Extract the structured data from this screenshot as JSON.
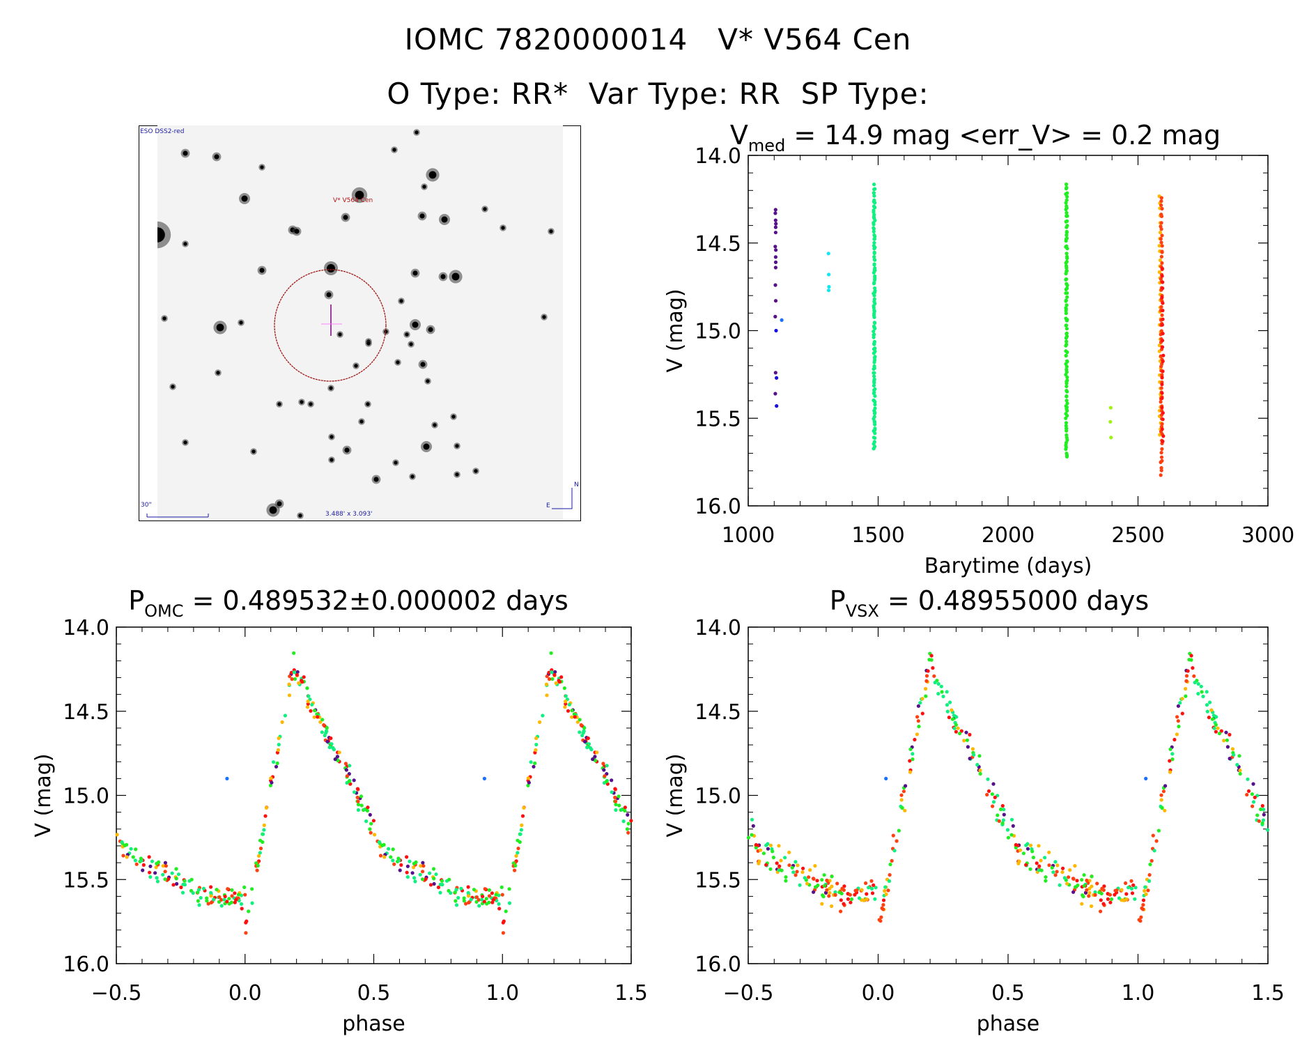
{
  "header": {
    "title_line1": "IOMC 7820000014   V* V564 Cen",
    "title_line2": "O Type: RR*  Var Type: RR  SP Type:"
  },
  "finder_image": {
    "survey_label": "ESO DSS2-red",
    "target_label": "V* V564 Cen",
    "scale_label": "30\"",
    "fov_label": "3.488' x 3.093'",
    "north_label": "N",
    "east_label": "E"
  },
  "chart_data": [
    {
      "id": "light_curve",
      "type": "scatter",
      "title_main": "V",
      "title_sub": "med",
      "title_rest": " = 14.9 mag <err_V> = 0.2 mag",
      "xlabel": "Barytime (days)",
      "ylabel": "V (mag)",
      "xlim": [
        1000,
        3000
      ],
      "ylim": [
        16.0,
        14.0
      ],
      "y_inverted": true,
      "xticks": [
        1000,
        1500,
        2000,
        2500,
        3000
      ],
      "yticks": [
        "14.0",
        "14.5",
        "15.0",
        "15.5",
        "16.0"
      ],
      "grid": false,
      "groups": [
        {
          "x": 1105,
          "color": "#55108a",
          "y": [
            14.31,
            14.33,
            14.37,
            14.39,
            14.41,
            14.44,
            14.52,
            14.54,
            14.58,
            14.61,
            14.64,
            14.74,
            14.83,
            14.92,
            15.24,
            15.36
          ]
        },
        {
          "x": 1108,
          "color": "#1a10e0",
          "y": [
            15.0,
            15.27,
            15.43
          ]
        },
        {
          "x": 1128,
          "color": "#1a70ff",
          "y": [
            14.94
          ]
        },
        {
          "x": 1310,
          "color": "#10e8f0",
          "y": [
            14.56,
            14.68,
            14.75,
            14.77
          ]
        },
        {
          "x": 1485,
          "color": "#10f080",
          "y_range": [
            14.17,
            15.68
          ],
          "n": 120
        },
        {
          "x": 2225,
          "color": "#20ee20",
          "y_range": [
            14.17,
            15.72
          ],
          "n": 110
        },
        {
          "x": 2395,
          "color": "#a0f010",
          "y": [
            15.44,
            15.52,
            15.61
          ]
        },
        {
          "x": 2585,
          "color": "#ffb800",
          "y_range": [
            14.24,
            15.6
          ],
          "n": 40
        },
        {
          "x": 2590,
          "color": "#ff4010",
          "y_range": [
            14.24,
            15.83
          ],
          "n": 70
        },
        {
          "x": 2595,
          "color": "#ff1010",
          "y_range": [
            14.64,
            15.64
          ],
          "n": 25
        }
      ]
    },
    {
      "id": "phase_omc",
      "type": "scatter",
      "title_main": "P",
      "title_sub": "OMC",
      "title_rest": " = 0.489532±0.000002 days",
      "period_days": 0.489532,
      "period_err_days": 2e-06,
      "xlabel": "phase",
      "ylabel": "V (mag)",
      "xlim": [
        -0.5,
        1.5
      ],
      "ylim": [
        16.0,
        14.0
      ],
      "y_inverted": true,
      "xticks": [
        "-0.5",
        "0.0",
        "0.5",
        "1.0",
        "1.5"
      ],
      "yticks": [
        "14.0",
        "14.5",
        "15.0",
        "15.5",
        "16.0"
      ],
      "grid": false,
      "curve": {
        "min_phase": 0.0,
        "max_phase": 0.19,
        "max_mag": 14.2,
        "min_mag": 15.8,
        "scatter": 0.09
      },
      "outliers": [
        {
          "phase": -0.07,
          "v": 14.9,
          "color": "#1a70ff"
        },
        {
          "phase": 0.93,
          "v": 14.9,
          "color": "#1a70ff"
        }
      ]
    },
    {
      "id": "phase_vsx",
      "type": "scatter",
      "title_main": "P",
      "title_sub": "VSX",
      "title_rest": " = 0.48955000 days",
      "period_days": 0.48955,
      "xlabel": "phase",
      "ylabel": "V (mag)",
      "xlim": [
        -0.5,
        1.5
      ],
      "ylim": [
        16.0,
        14.0
      ],
      "y_inverted": true,
      "xticks": [
        "-0.5",
        "0.0",
        "0.5",
        "1.0",
        "1.5"
      ],
      "yticks": [
        "14.0",
        "14.5",
        "15.0",
        "15.5",
        "16.0"
      ],
      "grid": false,
      "curve": {
        "min_phase": 0.0,
        "max_phase": 0.2,
        "max_mag": 14.2,
        "min_mag": 15.8,
        "scatter": 0.14
      },
      "outliers": [
        {
          "phase": 0.03,
          "v": 14.9,
          "color": "#1a70ff"
        },
        {
          "phase": 1.03,
          "v": 14.9,
          "color": "#1a70ff"
        }
      ]
    }
  ],
  "colors": {
    "season_palette": [
      "#55108a",
      "#1a10e0",
      "#1a70ff",
      "#10e8f0",
      "#10f080",
      "#20ee20",
      "#a0f010",
      "#ffb800",
      "#ff4010",
      "#ff1010"
    ],
    "circle": "#a01818",
    "crosshair": "#800080"
  }
}
